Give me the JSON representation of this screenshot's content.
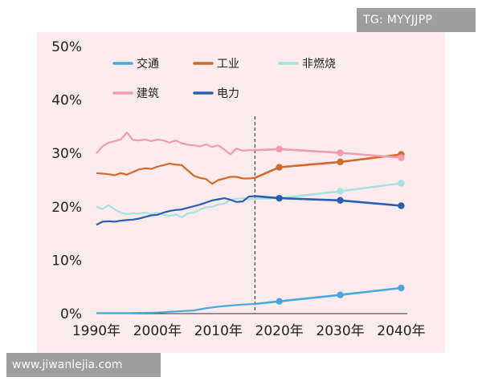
{
  "watermarks": {
    "top": "TG: MYYJJPP",
    "bottom": "www.jiwanlejia.com"
  },
  "chart_data": {
    "type": "line",
    "title": "",
    "xlabel": "",
    "ylabel": "",
    "xlim": [
      1990,
      2041
    ],
    "ylim": [
      0,
      50
    ],
    "x_ticks": [
      "1990年",
      "2000年",
      "2010年",
      "2020年",
      "2030年",
      "2040年"
    ],
    "x_tick_values": [
      1990,
      2000,
      2010,
      2020,
      2030,
      2040
    ],
    "y_ticks": [
      "0%",
      "10%",
      "20%",
      "30%",
      "40%",
      "50%"
    ],
    "y_tick_values": [
      0,
      10,
      20,
      30,
      40,
      50
    ],
    "grid": false,
    "projection_start_x": 2016,
    "legend_placement": "top",
    "series": [
      {
        "name": "交通",
        "color": "#4aa8d8",
        "historical": [
          [
            1990,
            0.1
          ],
          [
            1995,
            0.1
          ],
          [
            2000,
            0.2
          ],
          [
            2003,
            0.4
          ],
          [
            2006,
            0.6
          ],
          [
            2008,
            1.0
          ],
          [
            2010,
            1.3
          ],
          [
            2012,
            1.5
          ],
          [
            2014,
            1.7
          ],
          [
            2016,
            1.8
          ]
        ],
        "projection": [
          [
            2016,
            1.8
          ],
          [
            2020,
            2.3
          ],
          [
            2030,
            3.5
          ],
          [
            2040,
            4.8
          ]
        ],
        "markers": [
          [
            2020,
            2.3
          ],
          [
            2030,
            3.5
          ],
          [
            2040,
            4.8
          ]
        ]
      },
      {
        "name": "工业",
        "color": "#d2692b",
        "historical": [
          [
            1990,
            26.3
          ],
          [
            1992,
            26.1
          ],
          [
            1993,
            25.9
          ],
          [
            1994,
            26.3
          ],
          [
            1995,
            26.0
          ],
          [
            1996,
            26.5
          ],
          [
            1997,
            27.0
          ],
          [
            1998,
            27.2
          ],
          [
            1999,
            27.1
          ],
          [
            2000,
            27.5
          ],
          [
            2001,
            27.8
          ],
          [
            2002,
            28.1
          ],
          [
            2003,
            27.9
          ],
          [
            2004,
            27.8
          ],
          [
            2005,
            26.8
          ],
          [
            2006,
            25.8
          ],
          [
            2007,
            25.4
          ],
          [
            2008,
            25.2
          ],
          [
            2009,
            24.3
          ],
          [
            2010,
            25.0
          ],
          [
            2011,
            25.3
          ],
          [
            2012,
            25.6
          ],
          [
            2013,
            25.6
          ],
          [
            2014,
            25.3
          ],
          [
            2015,
            25.3
          ],
          [
            2016,
            25.4
          ]
        ],
        "projection": [
          [
            2016,
            25.4
          ],
          [
            2020,
            27.4
          ],
          [
            2030,
            28.4
          ],
          [
            2040,
            29.8
          ]
        ],
        "markers": [
          [
            2020,
            27.4
          ],
          [
            2030,
            28.4
          ],
          [
            2040,
            29.8
          ]
        ]
      },
      {
        "name": "非燃烧",
        "color": "#a6e2de",
        "historical": [
          [
            1990,
            20.0
          ],
          [
            1991,
            19.6
          ],
          [
            1992,
            20.3
          ],
          [
            1993,
            19.5
          ],
          [
            1994,
            18.9
          ],
          [
            1995,
            18.6
          ],
          [
            1996,
            18.8
          ],
          [
            1997,
            18.7
          ],
          [
            1998,
            18.9
          ],
          [
            1999,
            18.6
          ],
          [
            2000,
            18.9
          ],
          [
            2001,
            18.5
          ],
          [
            2002,
            18.3
          ],
          [
            2003,
            18.6
          ],
          [
            2004,
            18.0
          ],
          [
            2005,
            18.8
          ],
          [
            2006,
            18.9
          ],
          [
            2007,
            19.5
          ],
          [
            2008,
            19.9
          ],
          [
            2009,
            20.0
          ],
          [
            2010,
            20.4
          ],
          [
            2011,
            20.6
          ],
          [
            2012,
            21.3
          ],
          [
            2013,
            21.5
          ],
          [
            2014,
            21.6
          ],
          [
            2015,
            21.4
          ],
          [
            2016,
            21.5
          ]
        ],
        "projection": [
          [
            2016,
            21.5
          ],
          [
            2020,
            21.6
          ],
          [
            2030,
            22.9
          ],
          [
            2040,
            24.4
          ]
        ],
        "markers": [
          [
            2030,
            22.9
          ],
          [
            2040,
            24.4
          ]
        ]
      },
      {
        "name": "建筑",
        "color": "#f29ab0",
        "historical": [
          [
            1990,
            30.0
          ],
          [
            1991,
            31.3
          ],
          [
            1992,
            32.0
          ],
          [
            1993,
            32.3
          ],
          [
            1994,
            32.6
          ],
          [
            1995,
            33.9
          ],
          [
            1996,
            32.5
          ],
          [
            1997,
            32.4
          ],
          [
            1998,
            32.6
          ],
          [
            1999,
            32.3
          ],
          [
            2000,
            32.6
          ],
          [
            2001,
            32.4
          ],
          [
            2002,
            32.0
          ],
          [
            2003,
            32.4
          ],
          [
            2004,
            31.9
          ],
          [
            2005,
            31.6
          ],
          [
            2006,
            31.5
          ],
          [
            2007,
            31.3
          ],
          [
            2008,
            31.7
          ],
          [
            2009,
            31.2
          ],
          [
            2010,
            31.5
          ],
          [
            2011,
            30.7
          ],
          [
            2012,
            29.8
          ],
          [
            2013,
            30.9
          ],
          [
            2014,
            30.5
          ],
          [
            2015,
            30.6
          ],
          [
            2016,
            30.6
          ]
        ],
        "projection": [
          [
            2016,
            30.6
          ],
          [
            2020,
            30.8
          ],
          [
            2030,
            30.1
          ],
          [
            2040,
            29.2
          ]
        ],
        "markers": [
          [
            2020,
            30.8
          ],
          [
            2030,
            30.1
          ],
          [
            2040,
            29.2
          ]
        ]
      },
      {
        "name": "电力",
        "color": "#2a5db0",
        "historical": [
          [
            1990,
            16.6
          ],
          [
            1991,
            17.2
          ],
          [
            1992,
            17.3
          ],
          [
            1993,
            17.2
          ],
          [
            1994,
            17.4
          ],
          [
            1995,
            17.5
          ],
          [
            1996,
            17.6
          ],
          [
            1997,
            17.8
          ],
          [
            1998,
            18.1
          ],
          [
            1999,
            18.4
          ],
          [
            2000,
            18.5
          ],
          [
            2001,
            18.9
          ],
          [
            2002,
            19.2
          ],
          [
            2003,
            19.4
          ],
          [
            2004,
            19.5
          ],
          [
            2005,
            19.8
          ],
          [
            2006,
            20.1
          ],
          [
            2007,
            20.4
          ],
          [
            2008,
            20.8
          ],
          [
            2009,
            21.2
          ],
          [
            2010,
            21.4
          ],
          [
            2011,
            21.6
          ],
          [
            2012,
            21.3
          ],
          [
            2013,
            20.9
          ],
          [
            2014,
            21.0
          ],
          [
            2015,
            21.9
          ],
          [
            2016,
            22.0
          ]
        ],
        "projection": [
          [
            2016,
            22.0
          ],
          [
            2020,
            21.6
          ],
          [
            2030,
            21.2
          ],
          [
            2040,
            20.2
          ]
        ],
        "markers": [
          [
            2020,
            21.6
          ],
          [
            2030,
            21.2
          ],
          [
            2040,
            20.2
          ]
        ]
      }
    ]
  }
}
